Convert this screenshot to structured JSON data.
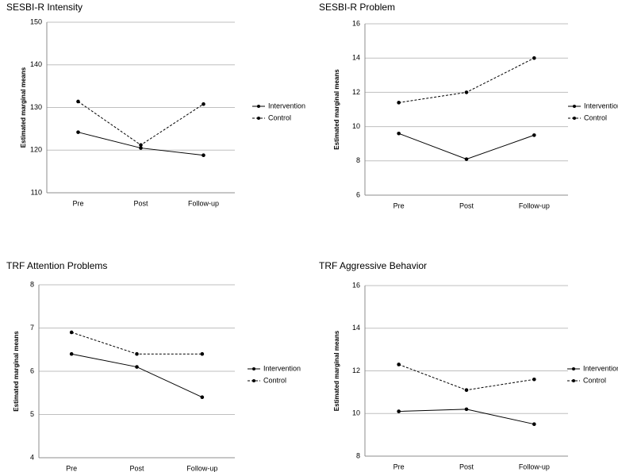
{
  "chart_data": [
    {
      "type": "line",
      "title": "SESBI-R Intensity",
      "y_label": "Estimated marginal means",
      "categories": [
        "Pre",
        "Post",
        "Follow-up"
      ],
      "ylim": [
        110,
        150
      ],
      "yticks": [
        110,
        120,
        130,
        140,
        150
      ],
      "grid": true,
      "series": [
        {
          "name": "Intervention",
          "color": "#000000",
          "line_style": "solid",
          "values": [
            124.2,
            120.5,
            118.8
          ]
        },
        {
          "name": "Control",
          "color": "#000000",
          "line_style": "dashed",
          "values": [
            131.4,
            121.2,
            130.8
          ]
        }
      ]
    },
    {
      "type": "line",
      "title": "SESBI-R Problem",
      "y_label": "Estimated marginal means",
      "categories": [
        "Pre",
        "Post",
        "Follow-up"
      ],
      "ylim": [
        6,
        16
      ],
      "yticks": [
        6,
        8,
        10,
        12,
        14,
        16
      ],
      "grid": true,
      "series": [
        {
          "name": "Intervention",
          "color": "#000000",
          "line_style": "solid",
          "values": [
            9.6,
            8.1,
            9.5
          ]
        },
        {
          "name": "Control",
          "color": "#000000",
          "line_style": "dashed",
          "values": [
            11.4,
            12.0,
            14.0
          ]
        }
      ]
    },
    {
      "type": "line",
      "title": "TRF Attention Problems",
      "y_label": "Estimated marginal means",
      "categories": [
        "Pre",
        "Post",
        "Follow-up"
      ],
      "ylim": [
        4,
        8
      ],
      "yticks": [
        4,
        5,
        6,
        7,
        8
      ],
      "grid": true,
      "series": [
        {
          "name": "Intervention",
          "color": "#000000",
          "line_style": "solid",
          "values": [
            6.4,
            6.1,
            5.4
          ]
        },
        {
          "name": "Control",
          "color": "#000000",
          "line_style": "dashed",
          "values": [
            6.9,
            6.4,
            6.4
          ]
        }
      ]
    },
    {
      "type": "line",
      "title": "TRF Aggressive Behavior",
      "y_label": "Estimated marginal means",
      "categories": [
        "Pre",
        "Post",
        "Follow-up"
      ],
      "ylim": [
        8,
        16
      ],
      "yticks": [
        8,
        10,
        12,
        14,
        16
      ],
      "grid": true,
      "series": [
        {
          "name": "Intervention",
          "color": "#000000",
          "line_style": "solid",
          "values": [
            10.1,
            10.2,
            9.5
          ]
        },
        {
          "name": "Control",
          "color": "#000000",
          "line_style": "dashed",
          "values": [
            12.3,
            11.1,
            11.6
          ]
        }
      ]
    }
  ]
}
